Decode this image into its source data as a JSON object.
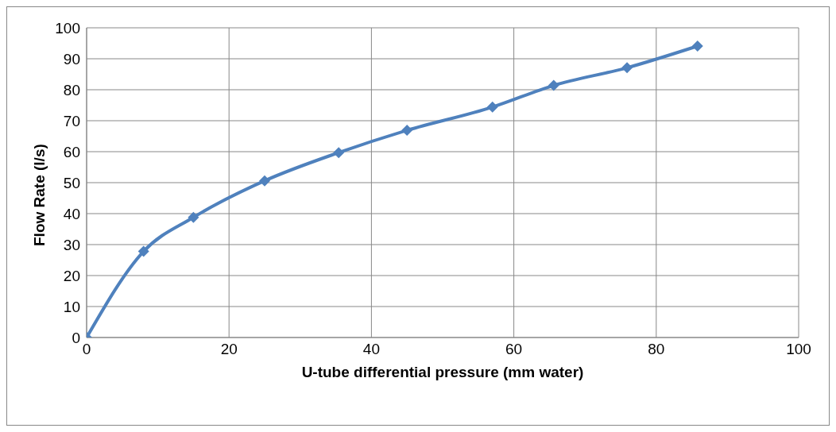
{
  "chart_data": {
    "type": "line",
    "xlabel": "U-tube differential pressure (mm water)",
    "ylabel": "Flow Rate (l/s)",
    "x": [
      0,
      8,
      15,
      25,
      35.4,
      45,
      57,
      65.6,
      75.9,
      85.8
    ],
    "series": [
      {
        "color": "#4f81bd",
        "values": [
          0,
          27.8,
          38.8,
          50.6,
          59.7,
          66.9,
          74.4,
          81.4,
          87.1,
          94.1
        ]
      }
    ],
    "xlim": [
      0,
      100
    ],
    "xticks": [
      0,
      20,
      40,
      60,
      80,
      100
    ],
    "ylim": [
      0,
      100
    ],
    "yticks": [
      0,
      10,
      20,
      30,
      40,
      50,
      60,
      70,
      80,
      90,
      100
    ],
    "grid": true,
    "marker": "diamond",
    "line_style": "solid"
  }
}
